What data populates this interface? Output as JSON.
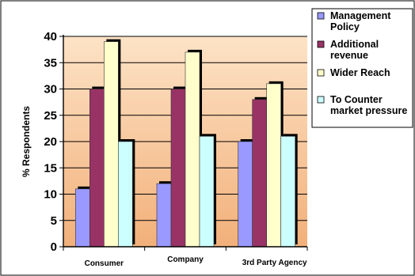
{
  "chart_data": {
    "type": "bar",
    "title": "",
    "xlabel": "",
    "ylabel": "% Respondents",
    "ylim": [
      0,
      40
    ],
    "y_ticks": [
      0,
      5,
      10,
      15,
      20,
      25,
      30,
      35,
      40
    ],
    "grid": true,
    "legend_position": "top-right",
    "categories": [
      "Consumer",
      "Company",
      "3rd Party Agency"
    ],
    "series": [
      {
        "name": "Management Policy",
        "legend_lines": [
          "Management",
          "Policy"
        ],
        "color": "#9999ff",
        "values": [
          11,
          12,
          20
        ]
      },
      {
        "name": "Additional revenue",
        "legend_lines": [
          "Additional",
          "revenue"
        ],
        "color": "#993366",
        "values": [
          30,
          30,
          28
        ]
      },
      {
        "name": "Wider Reach",
        "legend_lines": [
          "Wider Reach"
        ],
        "color": "#ffffcc",
        "values": [
          39,
          37,
          31
        ]
      },
      {
        "name": "To Counter market pressure",
        "legend_lines": [
          "To Counter",
          "market pressure"
        ],
        "color": "#ccffff",
        "values": [
          20,
          21,
          21
        ]
      }
    ],
    "plot_background": [
      "#fde3c6",
      "#f2b07a"
    ]
  }
}
